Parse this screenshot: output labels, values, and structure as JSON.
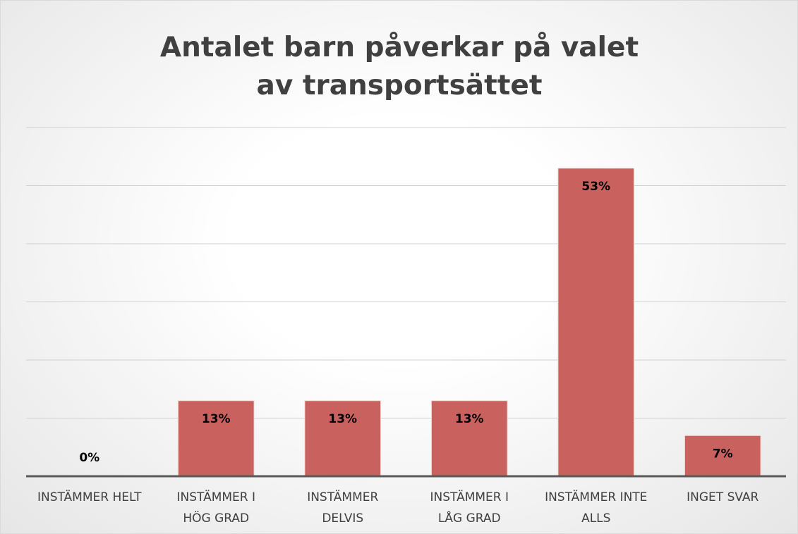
{
  "chart_data": {
    "type": "bar",
    "title": "Antalet barn påverkar på valet av transportsättet",
    "categories": [
      "INSTÄMMER HELT",
      "INSTÄMMER I HÖG GRAD",
      "INSTÄMMER DELVIS",
      "INSTÄMMER I LÅG GRAD",
      "INSTÄMMER INTE ALLS",
      "INGET SVAR"
    ],
    "values": [
      0,
      13,
      13,
      13,
      53,
      7
    ],
    "value_labels": [
      "0%",
      "13%",
      "13%",
      "13%",
      "53%",
      "7%"
    ],
    "color": "#c9625f",
    "ylim": [
      0,
      60
    ],
    "yticks": [
      0,
      10,
      20,
      30,
      40,
      50,
      60
    ],
    "grid": true
  }
}
